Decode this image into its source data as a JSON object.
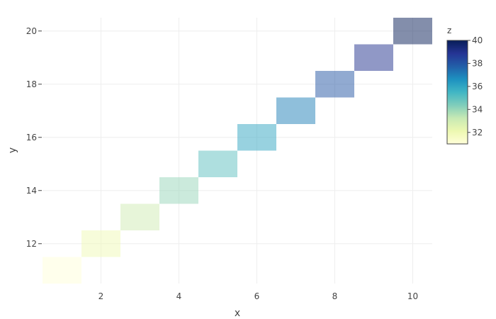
{
  "chart_data": {
    "type": "heatmap",
    "title": "",
    "xlabel": "x",
    "ylabel": "y",
    "x_ticks": [
      2,
      4,
      6,
      8,
      10
    ],
    "y_ticks": [
      12,
      14,
      16,
      18,
      20
    ],
    "xlim": [
      0.5,
      10.5
    ],
    "ylim": [
      10.5,
      20.5
    ],
    "grid": true,
    "cells": [
      {
        "x": 1,
        "y": 11,
        "z": 31
      },
      {
        "x": 2,
        "y": 12,
        "z": 32
      },
      {
        "x": 3,
        "y": 13,
        "z": 33
      },
      {
        "x": 4,
        "y": 14,
        "z": 34
      },
      {
        "x": 5,
        "y": 15,
        "z": 35
      },
      {
        "x": 6,
        "y": 16,
        "z": 36
      },
      {
        "x": 7,
        "y": 17,
        "z": 37
      },
      {
        "x": 8,
        "y": 18,
        "z": 38
      },
      {
        "x": 9,
        "y": 19,
        "z": 39
      },
      {
        "x": 10,
        "y": 20,
        "z": 40
      }
    ],
    "colorbar": {
      "title": "z",
      "ticks": [
        32,
        34,
        36,
        38,
        40
      ],
      "zmin": 31,
      "zmax": 40,
      "colorscale": [
        [
          0.0,
          "#ffffd9"
        ],
        [
          0.125,
          "#edf8b1"
        ],
        [
          0.25,
          "#c7e9b4"
        ],
        [
          0.375,
          "#7fcdbb"
        ],
        [
          0.5,
          "#41b6c4"
        ],
        [
          0.625,
          "#1d91c0"
        ],
        [
          0.75,
          "#225ea8"
        ],
        [
          0.875,
          "#253494"
        ],
        [
          1.0,
          "#081d58"
        ]
      ],
      "opacity": 0.5,
      "placement": "right"
    }
  }
}
